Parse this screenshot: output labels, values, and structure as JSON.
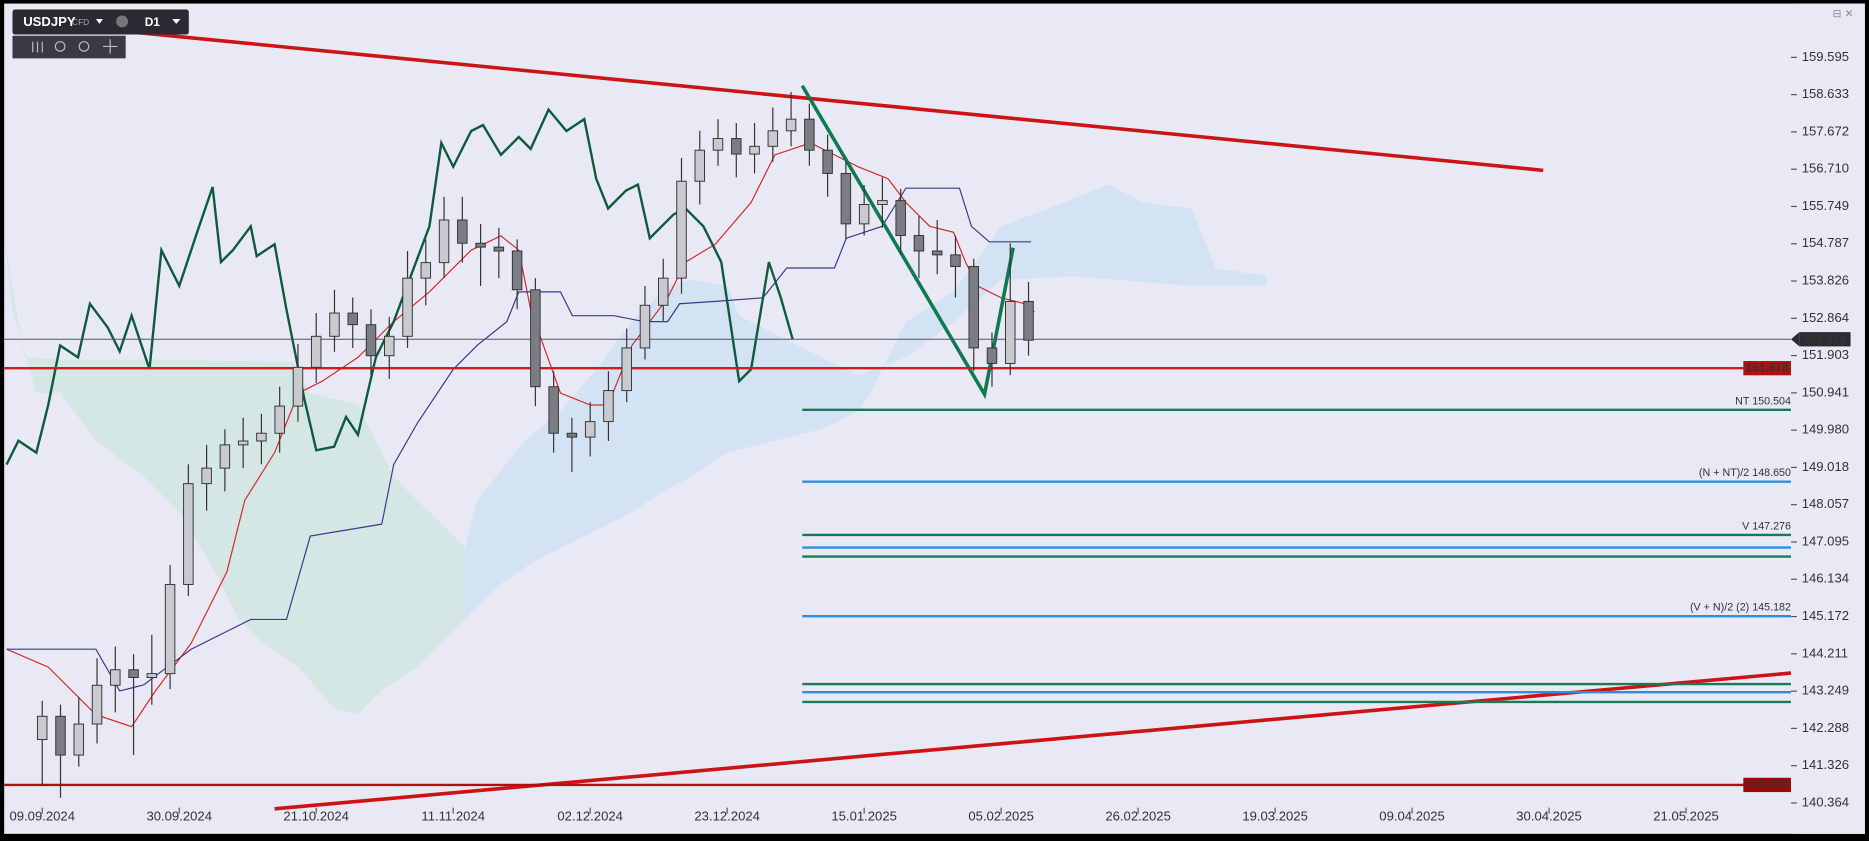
{
  "toolbar": {
    "symbol": "USDJPY",
    "badge": "CFD",
    "timeframe": "D1"
  },
  "chart_data": {
    "type": "candlestick",
    "x": [
      0,
      2,
      4,
      6,
      8,
      10,
      12,
      14,
      16,
      18,
      20,
      22,
      24,
      26,
      28,
      30,
      32,
      34,
      36,
      38,
      40,
      42,
      44,
      46,
      48,
      50,
      52,
      54,
      56,
      58,
      60,
      62,
      64,
      66,
      68,
      70,
      72,
      74,
      76,
      78,
      80,
      82,
      84,
      86,
      88,
      90,
      92,
      94,
      96,
      98,
      100,
      102,
      104,
      106,
      108
    ],
    "open": [
      142.0,
      142.6,
      141.6,
      142.4,
      143.4,
      143.8,
      143.6,
      143.7,
      146.0,
      148.6,
      149.0,
      149.6,
      149.7,
      149.9,
      150.6,
      151.6,
      152.4,
      153.0,
      152.7,
      151.9,
      152.4,
      153.9,
      154.3,
      155.4,
      154.8,
      154.7,
      154.6,
      153.6,
      151.1,
      149.9,
      149.8,
      150.2,
      151.0,
      152.1,
      153.2,
      153.9,
      156.4,
      157.2,
      157.5,
      157.1,
      157.3,
      157.7,
      158.0,
      157.2,
      156.6,
      155.3,
      155.8,
      155.9,
      155.0,
      154.6,
      154.5,
      154.2,
      152.1,
      151.7,
      153.3
    ],
    "high": [
      143.0,
      142.9,
      143.1,
      144.1,
      144.4,
      144.2,
      144.7,
      146.5,
      149.1,
      149.6,
      150.0,
      150.3,
      150.4,
      151.1,
      152.2,
      153.0,
      153.6,
      153.4,
      153.1,
      152.9,
      154.6,
      154.9,
      156.0,
      156.0,
      155.3,
      155.2,
      154.9,
      153.9,
      151.5,
      150.3,
      150.7,
      151.5,
      152.6,
      153.7,
      154.4,
      157.0,
      157.7,
      158.0,
      157.9,
      157.9,
      158.3,
      158.7,
      158.4,
      157.6,
      156.9,
      156.3,
      156.5,
      156.2,
      155.5,
      155.4,
      155.0,
      154.4,
      152.5,
      154.8,
      153.8
    ],
    "low": [
      140.8,
      140.5,
      141.3,
      141.9,
      142.7,
      141.6,
      142.9,
      143.3,
      145.7,
      147.9,
      148.4,
      149.0,
      149.1,
      149.4,
      150.2,
      151.2,
      152.0,
      152.1,
      151.4,
      151.3,
      152.1,
      153.2,
      153.9,
      154.3,
      153.7,
      153.9,
      153.1,
      150.6,
      149.4,
      148.9,
      149.3,
      149.7,
      150.7,
      151.8,
      152.8,
      153.5,
      155.8,
      156.8,
      156.5,
      156.6,
      156.9,
      157.3,
      156.8,
      156.0,
      154.9,
      155.0,
      155.2,
      154.5,
      153.9,
      154.0,
      153.4,
      151.5,
      151.1,
      151.4,
      151.9
    ],
    "close": [
      142.6,
      141.6,
      142.4,
      143.4,
      143.8,
      143.6,
      143.7,
      146.0,
      148.6,
      149.0,
      149.6,
      149.7,
      149.9,
      150.6,
      151.6,
      152.4,
      153.0,
      152.7,
      151.9,
      152.4,
      153.9,
      154.3,
      155.4,
      154.8,
      154.7,
      154.6,
      153.6,
      151.1,
      149.9,
      149.8,
      150.2,
      151.0,
      152.1,
      153.2,
      153.9,
      156.4,
      157.2,
      157.5,
      157.1,
      157.3,
      157.7,
      158.0,
      157.2,
      156.6,
      155.3,
      155.8,
      155.9,
      155.0,
      154.6,
      154.5,
      154.2,
      152.1,
      151.7,
      153.3,
      152.3
    ],
    "xlim": [
      -4.17,
      191.1
    ],
    "xticks": [
      {
        "value": 0,
        "label": "09.09.2024"
      },
      {
        "value": 15,
        "label": "30.09.2024"
      },
      {
        "value": 30,
        "label": "21.10.2024"
      },
      {
        "value": 45,
        "label": "11.11.2024"
      },
      {
        "value": 60,
        "label": "02.12.2024"
      },
      {
        "value": 75,
        "label": "23.12.2024"
      },
      {
        "value": 90,
        "label": "15.01.2025"
      },
      {
        "value": 105,
        "label": "05.02.2025"
      },
      {
        "value": 120,
        "label": "26.02.2025"
      },
      {
        "value": 135,
        "label": "19.03.2025"
      },
      {
        "value": 150,
        "label": "09.04.2025"
      },
      {
        "value": 165,
        "label": "30.04.2025"
      },
      {
        "value": 180,
        "label": "21.05.2025"
      }
    ],
    "ylim": [
      139.66,
      160.92
    ],
    "yticks": [
      159.595,
      158.633,
      157.672,
      {
        "value": 156.71,
        "label": "156.710"
      },
      155.749,
      154.787,
      153.826,
      152.864,
      151.903,
      150.941,
      {
        "value": 149.98,
        "label": "149.980"
      },
      149.018,
      148.057,
      147.095,
      146.134,
      145.172,
      144.211,
      143.249,
      142.288,
      141.326,
      140.364
    ],
    "levels": [
      {
        "value": 150.504,
        "label": "NT 150.504",
        "color": "#1a7a55"
      },
      {
        "value": 148.65,
        "label": "(N + NT)/2 148.650",
        "color": "#2d8ee0"
      },
      {
        "value": 147.276,
        "label": "V 147.276",
        "color": "#1a7a55"
      },
      {
        "value": 146.95,
        "color": "#2d8ee0"
      },
      {
        "value": 146.72,
        "color": "#1a7a55"
      },
      {
        "value": 145.182,
        "label": "(V + N)/2 (2) 145.182",
        "color": "#2d8ee0"
      },
      {
        "value": 143.43,
        "color": "#1a7a55"
      },
      {
        "value": 143.22,
        "color": "#2d8ee0"
      },
      {
        "value": 142.97,
        "color": "#1a7a55"
      }
    ],
    "price_lines": [
      {
        "value": 152.324,
        "label": "152.324",
        "color": "#555566",
        "box": "#2b2b33"
      },
      {
        "value": 151.578,
        "label": "151.578",
        "color": "#d01c1c",
        "box": "#b01010"
      },
      {
        "value": 140.83,
        "label": "140.830",
        "color": "#b01010",
        "box": "#a00808"
      }
    ]
  }
}
